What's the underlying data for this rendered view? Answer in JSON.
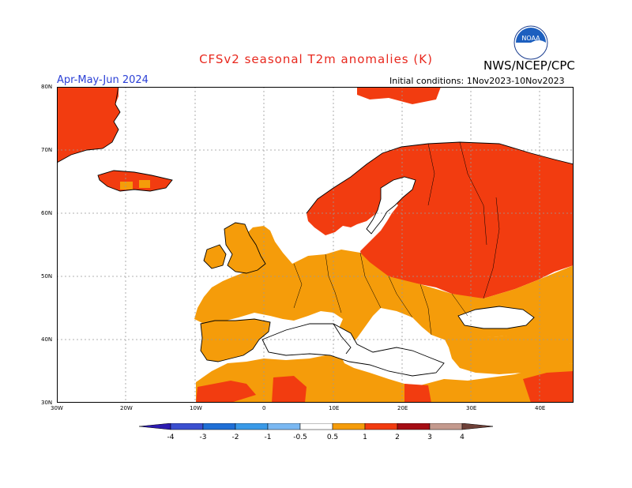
{
  "header": {
    "title": "CFSv2 seasonal T2m anomalies (K)",
    "org": "NWS/NCEP/CPC",
    "logo_text": "NOAA",
    "season": "Apr-May-Jun 2024",
    "initial_conditions": "Initial conditions: 1Nov2023-10Nov2023"
  },
  "map": {
    "lat_labels": [
      "80N",
      "70N",
      "60N",
      "50N",
      "40N",
      "30N"
    ],
    "lon_labels": [
      "30W",
      "20W",
      "10W",
      "0",
      "10E",
      "20E",
      "30E",
      "40E"
    ],
    "ocean_color": "#ffffff",
    "grid_color": "#999999",
    "coast_color": "#000000"
  },
  "legend": {
    "tick_labels": [
      "-4",
      "-3",
      "-2",
      "-1",
      "-0.5",
      "0.5",
      "1",
      "2",
      "3",
      "4"
    ],
    "colors": [
      "#2d1bb0",
      "#3b4fd0",
      "#1f6fd6",
      "#3a9ae8",
      "#7ab8f2",
      "#ffffff",
      "#f59c0a",
      "#f23c10",
      "#a50d14",
      "#c49a8e",
      "#6e4038"
    ]
  },
  "anomaly_classes": {
    "0.5-1": "#f59c0a",
    "1-2": "#f23c10"
  }
}
